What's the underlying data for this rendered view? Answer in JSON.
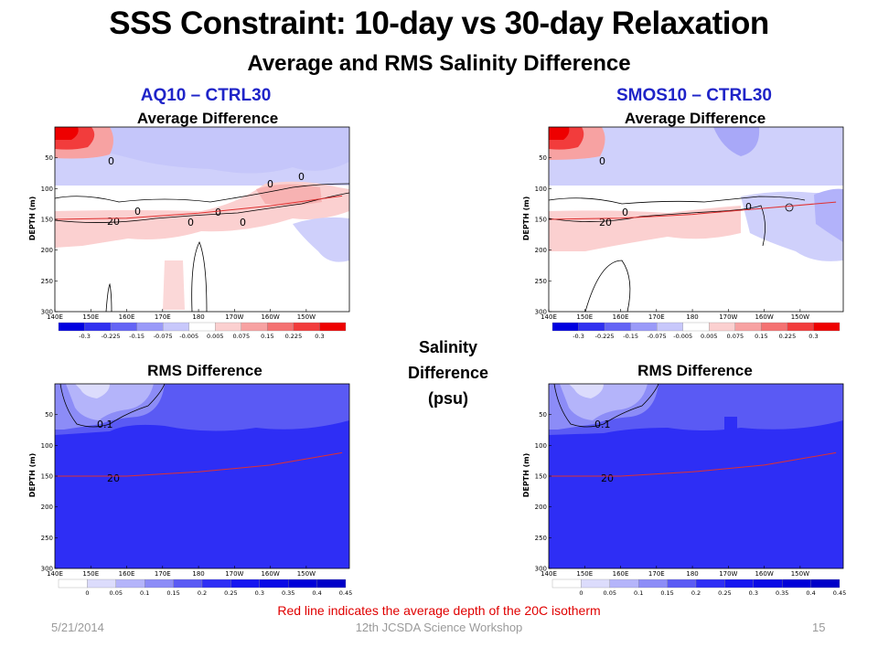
{
  "slide": {
    "title": "SSS Constraint:  10-day vs 30-day Relaxation",
    "subtitle": "Average and RMS Salinity Difference",
    "center_label_lines": [
      "Salinity",
      "Difference",
      "(psu)"
    ],
    "note": "Red line indicates the average depth of the 20C isotherm",
    "footer": {
      "date": "5/21/2014",
      "event": "12th JCSDA Science Workshop",
      "page": "15"
    }
  },
  "columns": [
    {
      "experiment": "AQ10 – CTRL30"
    },
    {
      "experiment": "SMOS10 – CTRL30"
    }
  ],
  "colors": {
    "neg": [
      "#0000e0",
      "#3030f0",
      "#6464f5",
      "#9a9af8",
      "#c8c8fb"
    ],
    "neutral": "#ffffff",
    "pos": [
      "#fbd0d0",
      "#f7a2a2",
      "#f47272",
      "#f23c3c",
      "#ee0000"
    ],
    "rms": [
      "#ffffff",
      "#dcdcfc",
      "#b4b4fa",
      "#8c8cf7",
      "#5a5af4",
      "#2e2ef5",
      "#1616f0",
      "#0a0ae6",
      "#0000d8",
      "#0000c8"
    ],
    "isotherm": "#e03030"
  },
  "chart_data": [
    {
      "id": "aq10-average",
      "type": "heatmap",
      "title": "Average Difference",
      "ylabel": "DEPTH (m)",
      "x_ticks": [
        "140E",
        "150E",
        "160E",
        "170E",
        "180",
        "170W",
        "160W",
        "150W"
      ],
      "y_ticks": [
        "50",
        "100",
        "150",
        "200",
        "250",
        "300"
      ],
      "ylim": [
        0,
        300
      ],
      "colorbar": [
        "-0.3",
        "-0.225",
        "-0.15",
        "-0.075",
        "-0.005",
        "0.005",
        "0.075",
        "0.15",
        "0.225",
        "0.3"
      ],
      "contour_labels": [
        "0",
        "0",
        "0",
        "0",
        "0",
        "20",
        "0",
        "0"
      ],
      "isotherm_20c_depth_m": [
        [
          140,
          150
        ],
        [
          160,
          148
        ],
        [
          180,
          140
        ],
        [
          200,
          128
        ],
        [
          220,
          112
        ]
      ]
    },
    {
      "id": "smos10-average",
      "type": "heatmap",
      "title": "Average Difference",
      "ylabel": "DEPTH (m)",
      "x_ticks": [
        "140E",
        "150E",
        "160E",
        "170E",
        "180",
        "170W",
        "160W",
        "150W"
      ],
      "y_ticks": [
        "50",
        "100",
        "150",
        "200",
        "250",
        "300"
      ],
      "ylim": [
        0,
        300
      ],
      "colorbar": [
        "-0.3",
        "-0.225",
        "-0.15",
        "-0.075",
        "-0.005",
        "0.005",
        "0.075",
        "0.15",
        "0.225",
        "0.3"
      ],
      "contour_labels": [
        "0",
        "0",
        "20",
        "0"
      ],
      "isotherm_20c_depth_m": [
        [
          140,
          150
        ],
        [
          160,
          148
        ],
        [
          180,
          142
        ],
        [
          200,
          132
        ],
        [
          220,
          122
        ]
      ]
    },
    {
      "id": "aq10-rms",
      "type": "heatmap",
      "title": "RMS Difference",
      "ylabel": "DEPTH (m)",
      "x_ticks": [
        "140E",
        "150E",
        "160E",
        "170E",
        "180",
        "170W",
        "160W",
        "150W"
      ],
      "y_ticks": [
        "50",
        "100",
        "150",
        "200",
        "250",
        "300"
      ],
      "ylim": [
        0,
        300
      ],
      "colorbar": [
        "0",
        "0.05",
        "0.1",
        "0.15",
        "0.2",
        "0.25",
        "0.3",
        "0.35",
        "0.4",
        "0.45"
      ],
      "contour_labels": [
        "0.1",
        "20"
      ],
      "isotherm_20c_depth_m": [
        [
          140,
          150
        ],
        [
          160,
          150
        ],
        [
          180,
          143
        ],
        [
          200,
          132
        ],
        [
          220,
          112
        ]
      ]
    },
    {
      "id": "smos10-rms",
      "type": "heatmap",
      "title": "RMS Difference",
      "ylabel": "DEPTH (m)",
      "x_ticks": [
        "140E",
        "150E",
        "160E",
        "170E",
        "180",
        "170W",
        "160W",
        "150W"
      ],
      "y_ticks": [
        "50",
        "100",
        "150",
        "200",
        "250",
        "300"
      ],
      "ylim": [
        0,
        300
      ],
      "colorbar": [
        "0",
        "0.05",
        "0.1",
        "0.15",
        "0.2",
        "0.25",
        "0.3",
        "0.35",
        "0.4",
        "0.45"
      ],
      "contour_labels": [
        "0.1",
        "20"
      ],
      "isotherm_20c_depth_m": [
        [
          140,
          150
        ],
        [
          160,
          150
        ],
        [
          180,
          143
        ],
        [
          200,
          132
        ],
        [
          220,
          112
        ]
      ]
    }
  ]
}
